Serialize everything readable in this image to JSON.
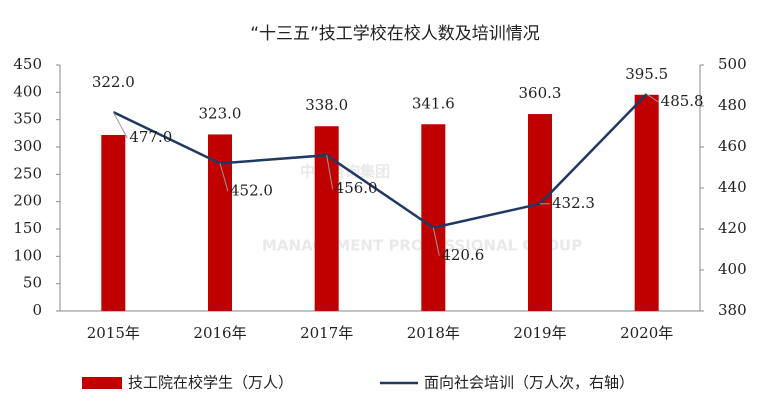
{
  "chart_data": {
    "type": "bar",
    "title": "“十三五”技工学校在校人数及培训情况",
    "categories": [
      "2015年",
      "2016年",
      "2017年",
      "2018年",
      "2019年",
      "2020年"
    ],
    "series": [
      {
        "name": "技工院在校学生（万人）",
        "type": "bar",
        "color": "#c00000",
        "values": [
          322.0,
          323.0,
          338.0,
          341.6,
          360.3,
          395.5
        ],
        "value_labels": [
          "322.0",
          "323.0",
          "338.0",
          "341.6",
          "360.3",
          "395.5"
        ]
      },
      {
        "name": "面向社会培训（万人次，右轴）",
        "type": "line",
        "color": "#1f3864",
        "axis": "y2",
        "values": [
          477.0,
          452.0,
          456.0,
          420.6,
          432.3,
          485.8
        ],
        "value_labels": [
          "477.0",
          "452.0",
          "456.0",
          "420.6",
          "432.3",
          "485.8"
        ]
      }
    ],
    "ylim": [
      0,
      450
    ],
    "yticks": [
      0,
      50,
      100,
      150,
      200,
      250,
      300,
      350,
      400,
      450
    ],
    "y2lim": [
      380,
      500
    ],
    "y2ticks": [
      380,
      400,
      420,
      440,
      460,
      480,
      500
    ],
    "legend": "bottom",
    "watermark": [
      "中大咨询集团",
      "MANAGEMENT PROFESSIONAL GROUP"
    ]
  }
}
